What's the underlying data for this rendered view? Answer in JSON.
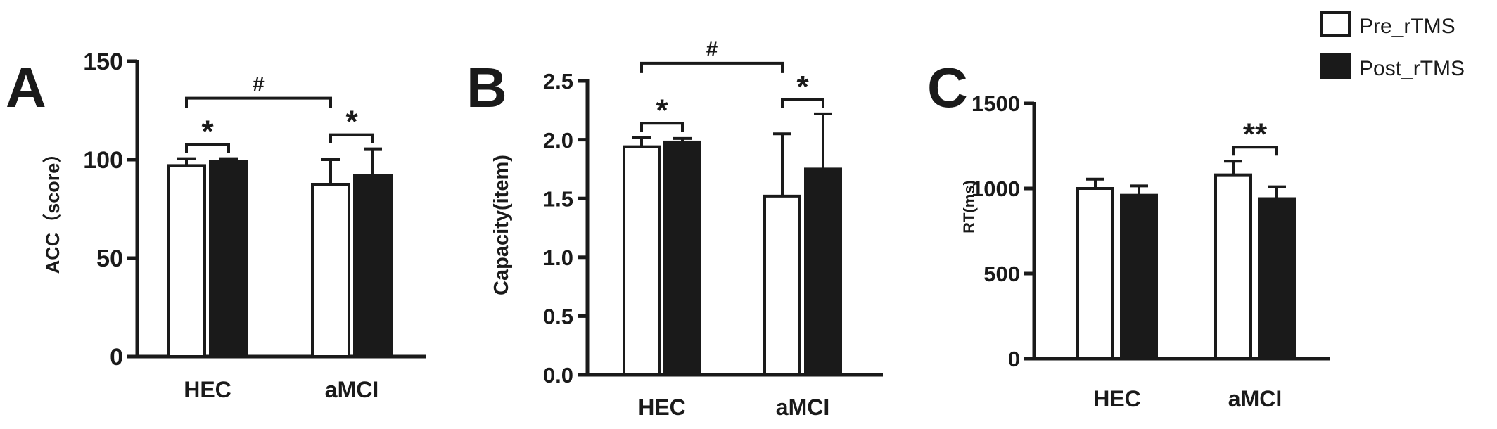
{
  "legend": {
    "placement": "top-right",
    "items": [
      {
        "label": "Pre_rTMS",
        "fill": "#ffffff"
      },
      {
        "label": "Post_rTMS",
        "fill": "#1a1a1a"
      }
    ]
  },
  "chart_data": [
    {
      "type": "bar",
      "panel_label": "A",
      "ylabel": "ACC（score）",
      "ylim": [
        0,
        150
      ],
      "yticks": [
        "0",
        "50",
        "100",
        "150"
      ],
      "categories": [
        "HEC",
        "aMCI"
      ],
      "series": [
        {
          "name": "Pre_rTMS",
          "values": [
            97,
            87.5
          ],
          "errors": [
            3.5,
            12.5
          ]
        },
        {
          "name": "Post_rTMS",
          "values": [
            99,
            92
          ],
          "errors": [
            1.5,
            13.5
          ]
        }
      ],
      "annotations": [
        {
          "type": "within",
          "category": "HEC",
          "label": "*"
        },
        {
          "type": "within",
          "category": "aMCI",
          "label": "*"
        },
        {
          "type": "between",
          "label": "#"
        }
      ]
    },
    {
      "type": "bar",
      "panel_label": "B",
      "ylabel": "Capacity(item)",
      "ylim": [
        0,
        2.5
      ],
      "yticks": [
        "0.0",
        "0.5",
        "1.0",
        "1.5",
        "2.0",
        "2.5"
      ],
      "categories": [
        "HEC",
        "aMCI"
      ],
      "series": [
        {
          "name": "Pre_rTMS",
          "values": [
            1.94,
            1.52
          ],
          "errors": [
            0.08,
            0.53
          ]
        },
        {
          "name": "Post_rTMS",
          "values": [
            1.98,
            1.75
          ],
          "errors": [
            0.03,
            0.47
          ]
        }
      ],
      "annotations": [
        {
          "type": "within",
          "category": "HEC",
          "label": "*"
        },
        {
          "type": "within",
          "category": "aMCI",
          "label": "*"
        },
        {
          "type": "between",
          "label": "#"
        }
      ]
    },
    {
      "type": "bar",
      "panel_label": "C",
      "ylabel": "RT(ms)",
      "ylim": [
        0,
        1500
      ],
      "yticks": [
        "0",
        "500",
        "1000",
        "1500"
      ],
      "categories": [
        "HEC",
        "aMCI"
      ],
      "series": [
        {
          "name": "Pre_rTMS",
          "values": [
            1000,
            1080
          ],
          "errors": [
            55,
            80
          ]
        },
        {
          "name": "Post_rTMS",
          "values": [
            960,
            940
          ],
          "errors": [
            55,
            70
          ]
        }
      ],
      "annotations": [
        {
          "type": "within",
          "category": "aMCI",
          "label": "**"
        }
      ]
    }
  ]
}
